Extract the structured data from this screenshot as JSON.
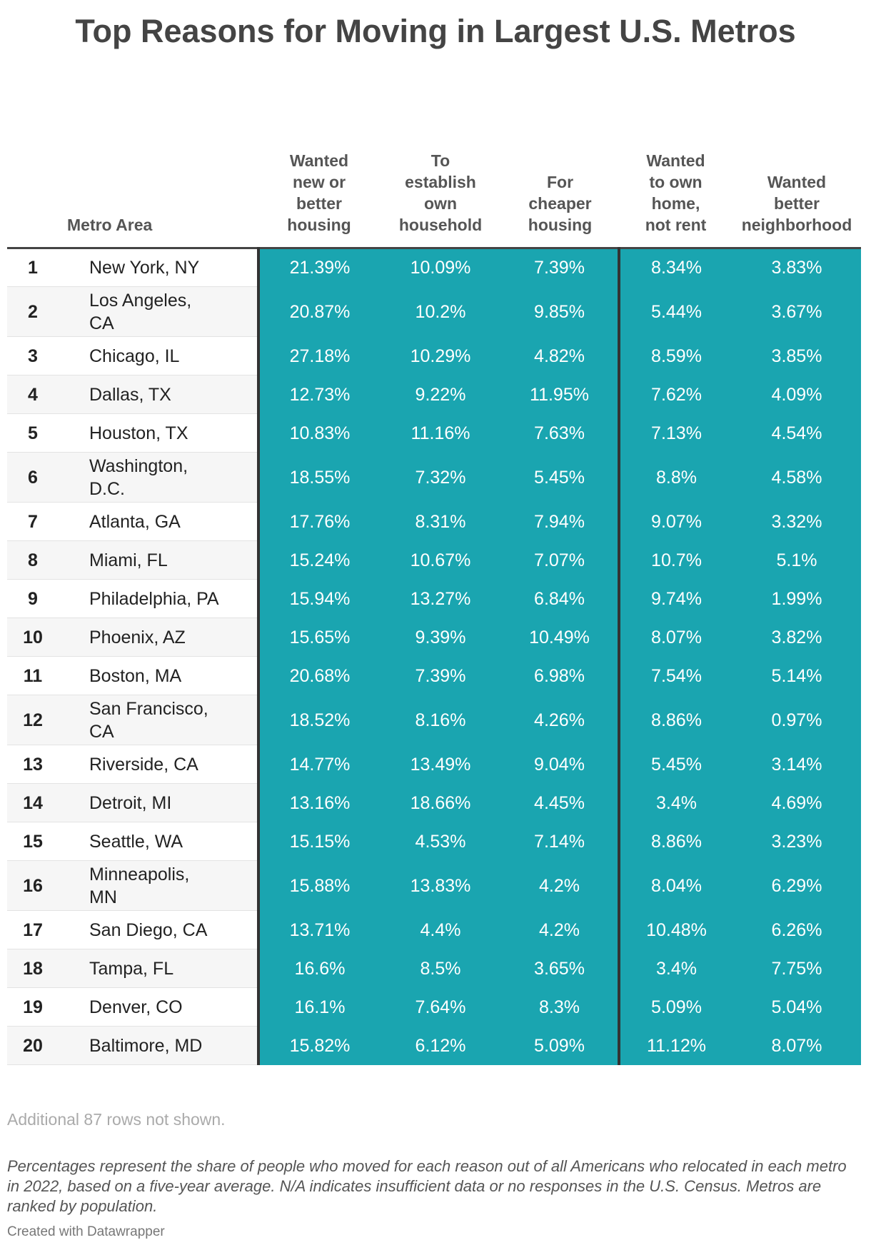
{
  "title": "Top Reasons for Moving in Largest U.S. Metros",
  "headers": {
    "rank": "",
    "metro": "Metro Area",
    "c1": [
      "Wanted",
      "new or",
      "better",
      "housing"
    ],
    "c2": [
      "To",
      "establish",
      "own",
      "household"
    ],
    "c3": [
      "For",
      "cheaper",
      "housing"
    ],
    "c4": [
      "Wanted",
      "to own",
      "home,",
      "not rent"
    ],
    "c5": [
      "Wanted",
      "better",
      "neighborhood"
    ]
  },
  "chart_data": {
    "type": "table",
    "title": "Top Reasons for Moving in Largest U.S. Metros",
    "columns": [
      "Metro Area",
      "Wanted new or better housing",
      "To establish own household",
      "For cheaper housing",
      "Wanted to own home, not rent",
      "Wanted better neighborhood"
    ],
    "rows": [
      {
        "rank": "1",
        "metro": [
          "New York, NY"
        ],
        "v": [
          "21.39%",
          "10.09%",
          "7.39%",
          "8.34%",
          "3.83%"
        ]
      },
      {
        "rank": "2",
        "metro": [
          "Los Angeles,",
          "CA"
        ],
        "v": [
          "20.87%",
          "10.2%",
          "9.85%",
          "5.44%",
          "3.67%"
        ]
      },
      {
        "rank": "3",
        "metro": [
          "Chicago, IL"
        ],
        "v": [
          "27.18%",
          "10.29%",
          "4.82%",
          "8.59%",
          "3.85%"
        ]
      },
      {
        "rank": "4",
        "metro": [
          "Dallas, TX"
        ],
        "v": [
          "12.73%",
          "9.22%",
          "11.95%",
          "7.62%",
          "4.09%"
        ]
      },
      {
        "rank": "5",
        "metro": [
          "Houston, TX"
        ],
        "v": [
          "10.83%",
          "11.16%",
          "7.63%",
          "7.13%",
          "4.54%"
        ]
      },
      {
        "rank": "6",
        "metro": [
          "Washington,",
          "D.C."
        ],
        "v": [
          "18.55%",
          "7.32%",
          "5.45%",
          "8.8%",
          "4.58%"
        ]
      },
      {
        "rank": "7",
        "metro": [
          "Atlanta, GA"
        ],
        "v": [
          "17.76%",
          "8.31%",
          "7.94%",
          "9.07%",
          "3.32%"
        ]
      },
      {
        "rank": "8",
        "metro": [
          "Miami, FL"
        ],
        "v": [
          "15.24%",
          "10.67%",
          "7.07%",
          "10.7%",
          "5.1%"
        ]
      },
      {
        "rank": "9",
        "metro": [
          "Philadelphia, PA"
        ],
        "v": [
          "15.94%",
          "13.27%",
          "6.84%",
          "9.74%",
          "1.99%"
        ]
      },
      {
        "rank": "10",
        "metro": [
          "Phoenix, AZ"
        ],
        "v": [
          "15.65%",
          "9.39%",
          "10.49%",
          "8.07%",
          "3.82%"
        ]
      },
      {
        "rank": "11",
        "metro": [
          "Boston, MA"
        ],
        "v": [
          "20.68%",
          "7.39%",
          "6.98%",
          "7.54%",
          "5.14%"
        ]
      },
      {
        "rank": "12",
        "metro": [
          "San Francisco,",
          "CA"
        ],
        "v": [
          "18.52%",
          "8.16%",
          "4.26%",
          "8.86%",
          "0.97%"
        ]
      },
      {
        "rank": "13",
        "metro": [
          "Riverside, CA"
        ],
        "v": [
          "14.77%",
          "13.49%",
          "9.04%",
          "5.45%",
          "3.14%"
        ]
      },
      {
        "rank": "14",
        "metro": [
          "Detroit, MI"
        ],
        "v": [
          "13.16%",
          "18.66%",
          "4.45%",
          "3.4%",
          "4.69%"
        ]
      },
      {
        "rank": "15",
        "metro": [
          "Seattle, WA"
        ],
        "v": [
          "15.15%",
          "4.53%",
          "7.14%",
          "8.86%",
          "3.23%"
        ]
      },
      {
        "rank": "16",
        "metro": [
          "Minneapolis,",
          "MN"
        ],
        "v": [
          "15.88%",
          "13.83%",
          "4.2%",
          "8.04%",
          "6.29%"
        ]
      },
      {
        "rank": "17",
        "metro": [
          "San Diego, CA"
        ],
        "v": [
          "13.71%",
          "4.4%",
          "4.2%",
          "10.48%",
          "6.26%"
        ]
      },
      {
        "rank": "18",
        "metro": [
          "Tampa, FL"
        ],
        "v": [
          "16.6%",
          "8.5%",
          "3.65%",
          "3.4%",
          "7.75%"
        ]
      },
      {
        "rank": "19",
        "metro": [
          "Denver, CO"
        ],
        "v": [
          "16.1%",
          "7.64%",
          "8.3%",
          "5.09%",
          "5.04%"
        ]
      },
      {
        "rank": "20",
        "metro": [
          "Baltimore, MD"
        ],
        "v": [
          "15.82%",
          "6.12%",
          "5.09%",
          "11.12%",
          "8.07%"
        ]
      }
    ]
  },
  "colors": {
    "cell": "#1aa5b0",
    "divider": "#333333"
  },
  "notes": {
    "rows_hidden": "Additional 87 rows not shown.",
    "footnote": "Percentages represent the share of people who moved for each reason out of all Americans who relocated in each metro in 2022, based on a five-year average. N/A indicates insufficient data or no responses in the U.S. Census. Metros are ranked by population.",
    "credit": "Created with Datawrapper"
  }
}
